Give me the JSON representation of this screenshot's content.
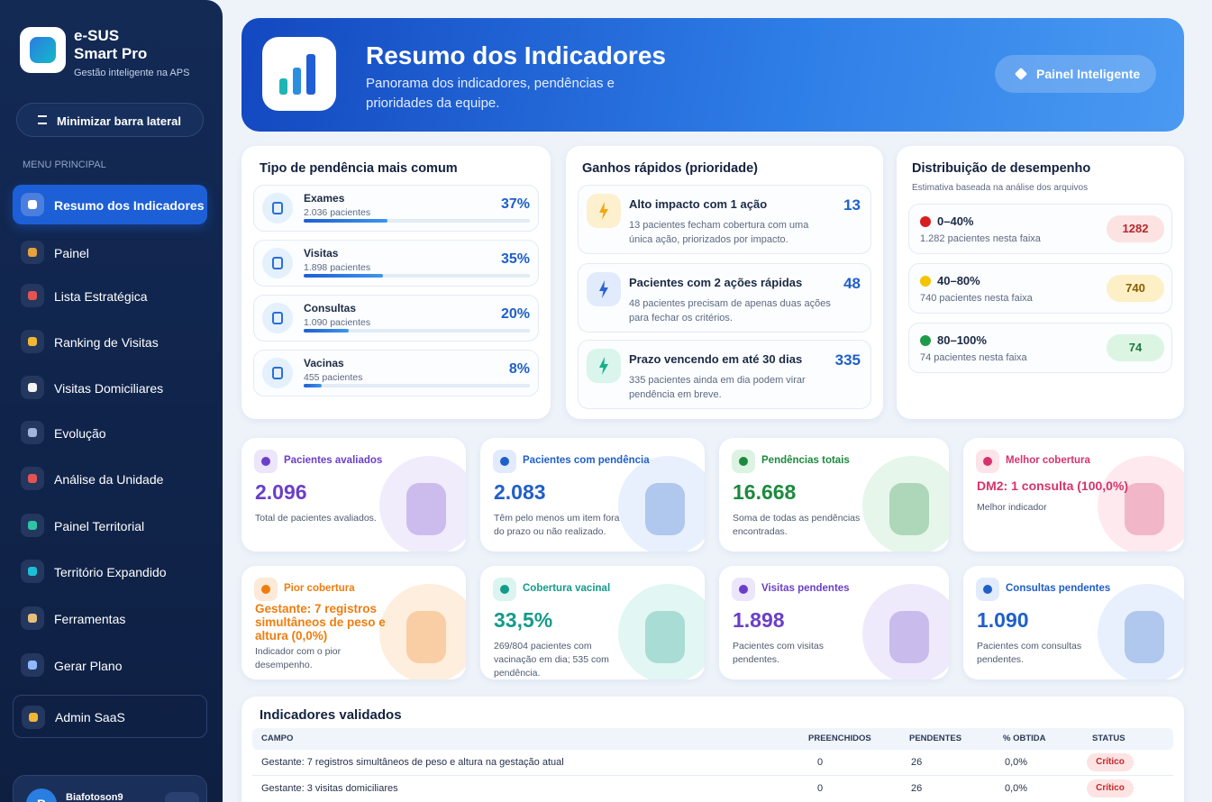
{
  "sidebar": {
    "brand_name": "e-SUS",
    "brand_product": "Smart Pro",
    "tagline": "Gestão inteligente na APS",
    "toggle": "Minimizar barra lateral",
    "section": "MENU PRINCIPAL",
    "menu": [
      {
        "label": "Resumo dos Indicadores",
        "active": true
      },
      {
        "label": "Painel"
      },
      {
        "label": "Lista Estratégica"
      },
      {
        "label": "Ranking de Visitas"
      },
      {
        "label": "Visitas Domiciliares"
      },
      {
        "label": "Evolução"
      },
      {
        "label": "Análise da Unidade"
      },
      {
        "label": "Painel Territorial"
      },
      {
        "label": "Território Expandido"
      },
      {
        "label": "Ferramentas"
      },
      {
        "label": "Gerar Plano"
      },
      {
        "label": "Admin SaaS"
      }
    ],
    "user": {
      "initial": "B",
      "name": "Biafotoson9"
    }
  },
  "header": {
    "title": "Resumo dos Indicadores",
    "subtitle": "Panorama dos indicadores, pendências e prioridades da equipe.",
    "button": "Painel Inteligente"
  },
  "pending_types": {
    "title": "Tipo de pendência mais comum",
    "items": [
      {
        "label": "Exames",
        "detail": "2.036 pacientes",
        "share": {
          "value": 37,
          "label": "37%"
        }
      },
      {
        "label": "Visitas",
        "detail": "1.898 pacientes",
        "share": {
          "value": 35,
          "label": "35%"
        }
      },
      {
        "label": "Consultas",
        "detail": "1.090 pacientes",
        "share": {
          "value": 20,
          "label": "20%"
        }
      },
      {
        "label": "Vacinas",
        "detail": "455 pacientes",
        "share": {
          "value": 8,
          "label": "8%"
        }
      }
    ]
  },
  "quick_wins": {
    "title": "Ganhos rápidos (prioridade)",
    "items": [
      {
        "title": "Alto impacto com 1 ação",
        "count": 13,
        "description": "13 pacientes fecham cobertura com uma única ação, priorizados por impacto."
      },
      {
        "title": "Pacientes com 2 ações rápidas",
        "count": 48,
        "description": "48 pacientes precisam de apenas duas ações para fechar os critérios."
      },
      {
        "title": "Prazo vencendo em até 30 dias",
        "count": 335,
        "description": "335 pacientes ainda em dia podem virar pendência em breve."
      }
    ]
  },
  "distribution": {
    "title": "Distribuição de desempenho",
    "subtitle": "Estimativa baseada na análise dos arquivos",
    "bands": [
      {
        "range": "0–40%",
        "detail": "1.282 pacientes nesta faixa",
        "count": 1282
      },
      {
        "range": "40–80%",
        "detail": "740 pacientes nesta faixa",
        "count": 740
      },
      {
        "range": "80–100%",
        "detail": "74 pacientes nesta faixa",
        "count": 74
      }
    ]
  },
  "kpis": [
    {
      "title": "Pacientes avaliados",
      "value": "2.096",
      "description": "Total de pacientes avaliados."
    },
    {
      "title": "Pacientes com pendência",
      "value": "2.083",
      "description": "Têm pelo menos um item fora do prazo ou não realizado."
    },
    {
      "title": "Pendências totais",
      "value": "16.668",
      "description": "Soma de todas as pendências encontradas."
    },
    {
      "title": "Melhor cobertura",
      "value": "DM2: 1 consulta (100,0%)",
      "description": "Melhor indicador"
    },
    {
      "title": "Pior cobertura",
      "value": "Gestante: 7 registros simultâneos de peso e altura (0,0%)",
      "description": "Indicador com o pior desempenho."
    },
    {
      "title": "Cobertura vacinal",
      "value": "33,5%",
      "description": "269/804 pacientes com vacinação em dia; 535 com pendência."
    },
    {
      "title": "Visitas pendentes",
      "value": "1.898",
      "description": "Pacientes com visitas pendentes."
    },
    {
      "title": "Consultas pendentes",
      "value": "1.090",
      "description": "Pacientes com consultas pendentes."
    }
  ],
  "table": {
    "title": "Indicadores validados",
    "columns": [
      "CAMPO",
      "PREENCHIDOS",
      "PENDENTES",
      "% OBTIDA",
      "STATUS"
    ],
    "rows": [
      [
        "Gestante: 7 registros simultâneos de peso e altura na gestação atual",
        0,
        26,
        "0,0%",
        "Crítico"
      ],
      [
        "Gestante: 3 visitas domiciliares",
        0,
        26,
        "0,0%",
        "Crítico"
      ]
    ]
  }
}
